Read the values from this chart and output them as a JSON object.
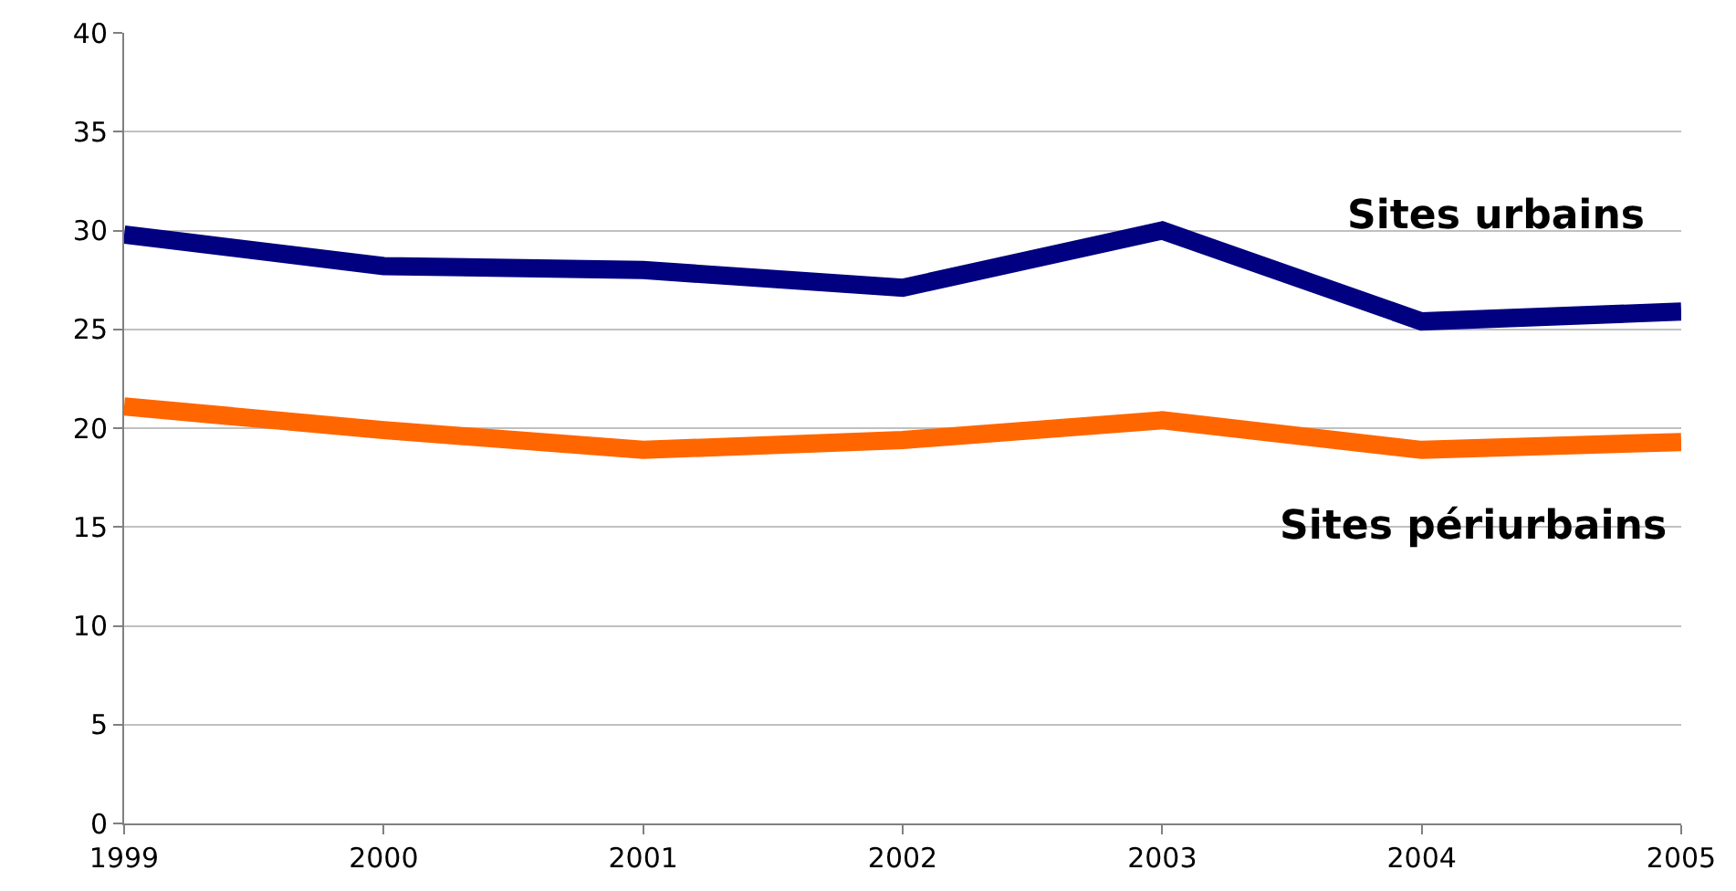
{
  "chart_data": {
    "type": "line",
    "x": [
      1999,
      2000,
      2001,
      2002,
      2003,
      2004,
      2005
    ],
    "series": [
      {
        "name": "Sites urbains",
        "color": "#000080",
        "values": [
          29.8,
          28.2,
          28.0,
          27.1,
          30.0,
          25.4,
          25.9
        ]
      },
      {
        "name": "Sites périurbains",
        "color": "#ff6600",
        "values": [
          21.1,
          19.9,
          18.9,
          19.4,
          20.4,
          18.9,
          19.3
        ]
      }
    ],
    "xlim": [
      1999,
      2005
    ],
    "xticks": [
      1999,
      2000,
      2001,
      2002,
      2003,
      2004,
      2005
    ],
    "ylim": [
      0,
      40
    ],
    "yticks": [
      0,
      5,
      10,
      15,
      20,
      25,
      30,
      35,
      40
    ],
    "grid": "y",
    "legend": false,
    "marker": "none",
    "line_style": "solid"
  }
}
